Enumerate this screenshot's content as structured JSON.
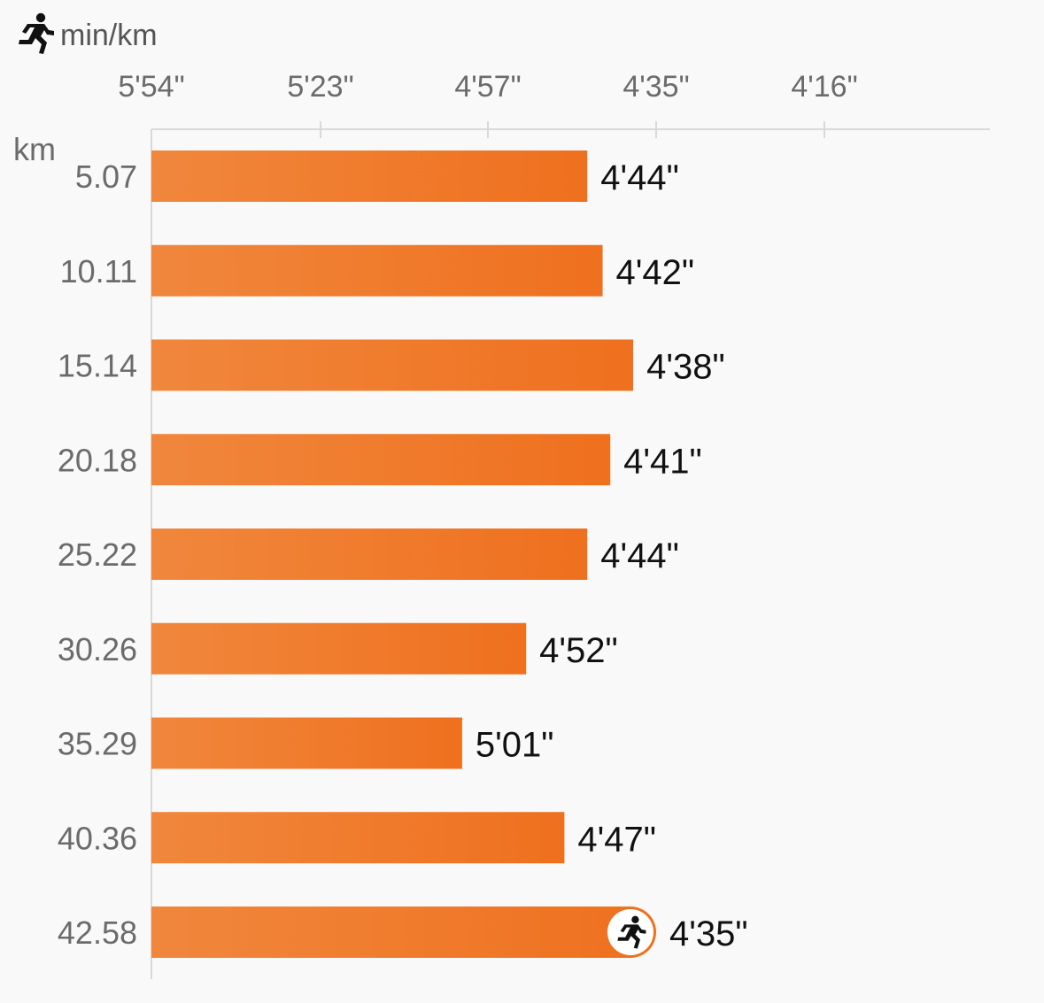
{
  "chart_data": {
    "type": "bar",
    "orientation": "horizontal",
    "pace_unit": "min/km",
    "distance_unit": "km",
    "x_axis": {
      "reversed": true,
      "ticks": [
        "5'54\"",
        "5'23\"",
        "4'57\"",
        "4'35\"",
        "4'16\""
      ],
      "tick_seconds": [
        354,
        323,
        297,
        275,
        256
      ]
    },
    "categories": [
      "5.07",
      "10.11",
      "15.14",
      "20.18",
      "25.22",
      "30.26",
      "35.29",
      "40.36",
      "42.58"
    ],
    "values": [
      284,
      282,
      278,
      281,
      284,
      292,
      301,
      287,
      275
    ],
    "value_labels": [
      "4'44\"",
      "4'42\"",
      "4'38\"",
      "4'41\"",
      "4'44\"",
      "4'52\"",
      "5'01\"",
      "4'47\"",
      "4'35\""
    ],
    "bar_gradient": [
      "#f0873d",
      "#ef701e"
    ],
    "runner_icon": "runner-icon",
    "finish_marker_icon": "runner-icon"
  }
}
